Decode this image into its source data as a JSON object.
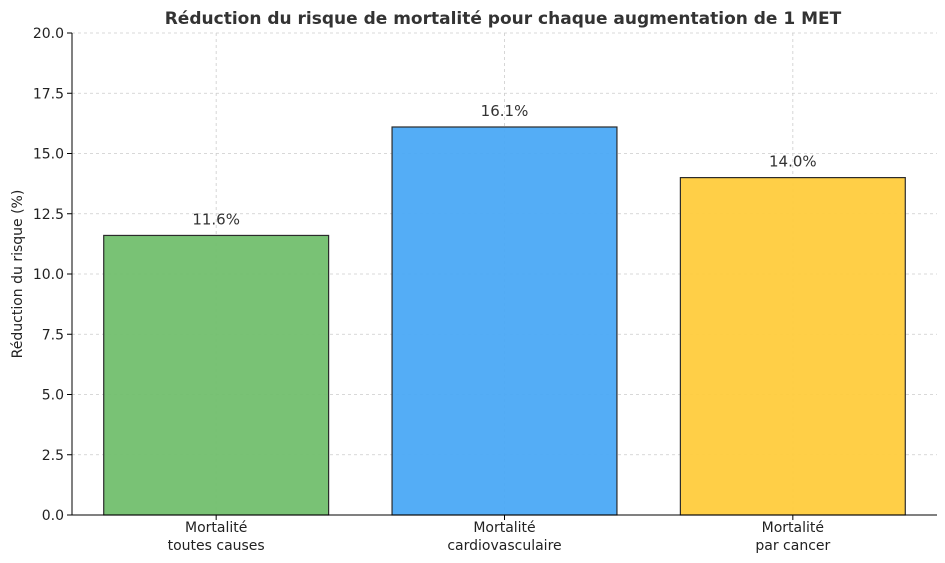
{
  "chart_data": {
    "type": "bar",
    "title": "Réduction du risque de mortalité pour chaque augmentation de 1 MET",
    "xlabel": "",
    "ylabel": "Réduction du risque (%)",
    "ylim": [
      0,
      20
    ],
    "yticks": [
      "0.0",
      "2.5",
      "5.0",
      "7.5",
      "10.0",
      "12.5",
      "15.0",
      "17.5",
      "20.0"
    ],
    "grid": true,
    "categories": [
      [
        "Mortalité",
        "toutes causes"
      ],
      [
        "Mortalité",
        "cardiovasculaire"
      ],
      [
        "Mortalité",
        "par cancer"
      ]
    ],
    "values": [
      11.6,
      16.1,
      14.0
    ],
    "data_labels": [
      "11.6%",
      "16.1%",
      "14.0%"
    ],
    "colors": [
      "#72bf6e",
      "#4ba9f5",
      "#ffcc3d"
    ]
  }
}
